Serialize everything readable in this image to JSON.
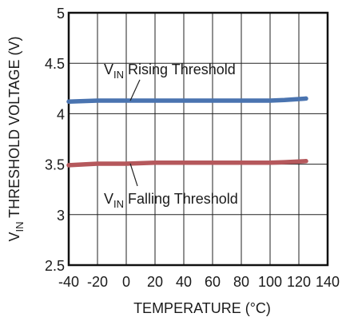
{
  "chart_data": {
    "type": "line",
    "title": "",
    "xlabel": "TEMPERATURE (°C)",
    "ylabel_main": "V",
    "ylabel_sub": "IN",
    "ylabel_rest": " THRESHOLD VOLTAGE (V)",
    "xlim": [
      -40,
      140
    ],
    "ylim": [
      2.5,
      5
    ],
    "x_ticks": [
      -40,
      -20,
      0,
      20,
      40,
      60,
      80,
      100,
      120,
      140
    ],
    "x_tick_labels": [
      "-40",
      "-20",
      "0",
      "20",
      "40",
      "60",
      "80",
      "100",
      "120",
      "140"
    ],
    "y_ticks": [
      2.5,
      3,
      3.5,
      4,
      4.5,
      5
    ],
    "y_tick_labels": [
      "2.5",
      "3",
      "3.5",
      "4",
      "4.5",
      "5"
    ],
    "grid": true,
    "series": [
      {
        "key": "rising",
        "color": "#4a74b0",
        "x": [
          -40,
          -20,
          0,
          20,
          40,
          60,
          80,
          100,
          110,
          125
        ],
        "y": [
          4.12,
          4.13,
          4.13,
          4.13,
          4.13,
          4.13,
          4.13,
          4.13,
          4.135,
          4.15
        ]
      },
      {
        "key": "falling",
        "color": "#b5585c",
        "x": [
          -40,
          -20,
          0,
          20,
          40,
          60,
          80,
          100,
          110,
          125
        ],
        "y": [
          3.49,
          3.505,
          3.505,
          3.515,
          3.515,
          3.515,
          3.515,
          3.515,
          3.52,
          3.53
        ]
      }
    ],
    "annotations": [
      {
        "key": "rising",
        "main": "V",
        "sub": "IN",
        "rest": " Rising Threshold",
        "anchor_x": 22,
        "anchor_y": 4.36
      },
      {
        "key": "falling",
        "main": "V",
        "sub": "IN",
        "rest": " Falling Threshold",
        "anchor_x": 20,
        "anchor_y": 3.22
      }
    ]
  }
}
